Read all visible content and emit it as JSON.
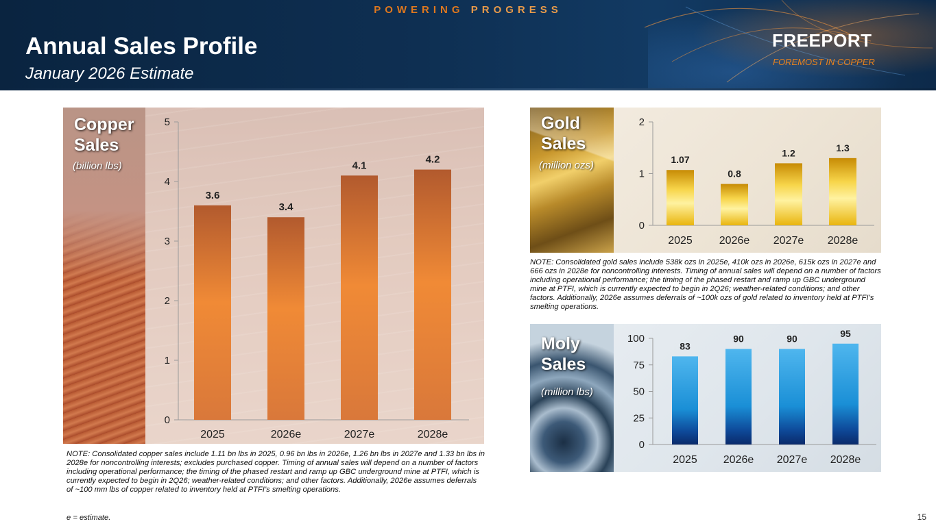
{
  "header": {
    "tagline_word1": "POWERING",
    "tagline_word2": "PROGRESS",
    "title": "Annual Sales Profile",
    "subtitle": "January 2026 Estimate",
    "logo_name": "FREEPORT",
    "logo_tagline": "FOREMOST IN COPPER",
    "accent_color": "#e0781e",
    "background_color": "#0e2f52"
  },
  "panels": {
    "copper": {
      "label_line1": "Copper",
      "label_line2": "Sales",
      "unit": "(billion lbs)"
    },
    "gold": {
      "label_line1": "Gold",
      "label_line2": "Sales",
      "unit": "(million ozs)"
    },
    "moly": {
      "label_line1": "Moly",
      "label_line2": "Sales",
      "unit": "(million lbs)"
    }
  },
  "chart_data": [
    {
      "id": "copper",
      "type": "bar",
      "categories": [
        "2025",
        "2026e",
        "2027e",
        "2028e"
      ],
      "values": [
        3.6,
        3.4,
        4.1,
        4.2
      ],
      "value_labels": [
        "3.6",
        "3.4",
        "4.1",
        "4.2"
      ],
      "ylim": [
        0,
        5
      ],
      "yticks": [
        "0",
        "1",
        "2",
        "3",
        "4",
        "5"
      ],
      "bar_color": "#d9783a",
      "grid": false
    },
    {
      "id": "gold",
      "type": "bar",
      "categories": [
        "2025",
        "2026e",
        "2027e",
        "2028e"
      ],
      "values": [
        1.07,
        0.8,
        1.2,
        1.3
      ],
      "value_labels": [
        "1.07",
        "0.8",
        "1.2",
        "1.3"
      ],
      "ylim": [
        0,
        2
      ],
      "yticks": [
        "0",
        "1",
        "2"
      ],
      "bar_color": "#f2c21a",
      "grid": false
    },
    {
      "id": "moly",
      "type": "bar",
      "categories": [
        "2025",
        "2026e",
        "2027e",
        "2028e"
      ],
      "values": [
        83,
        90,
        90,
        95
      ],
      "value_labels": [
        "83",
        "90",
        "90",
        "95"
      ],
      "ylim": [
        0,
        100
      ],
      "yticks": [
        "0",
        "25",
        "50",
        "75",
        "100"
      ],
      "bar_color": "#1a8fd6",
      "grid": false
    }
  ],
  "notes": {
    "gold": "NOTE: Consolidated gold sales include 538k ozs in 2025e, 410k ozs in 2026e, 615k ozs in 2027e and 666 ozs in 2028e for noncontrolling interests. Timing of annual sales will depend on a number of factors including operational performance; the timing of the phased restart and ramp up GBC underground mine at PTFI, which is currently expected to begin in 2Q26; weather-related conditions; and other factors. Additionally, 2026e assumes deferrals of ~100k ozs of gold related to inventory held at PTFI’s smelting operations.",
    "copper": "NOTE: Consolidated copper sales include 1.11 bn lbs in 2025, 0.96 bn lbs in 2026e, 1.26 bn lbs in 2027e and 1.33 bn lbs in 2028e for noncontrolling interests; excludes purchased copper. Timing of annual sales will depend on a number of factors including operational performance; the timing of the phased restart and ramp up GBC underground mine at PTFI, which is currently expected to begin in 2Q26;  weather-related conditions; and other factors. Additionally, 2026e assumes deferrals of ~100 mm lbs of copper related to inventory held at PTFI’s smelting operations.",
    "estimate": "e = estimate."
  },
  "page_number": "15"
}
